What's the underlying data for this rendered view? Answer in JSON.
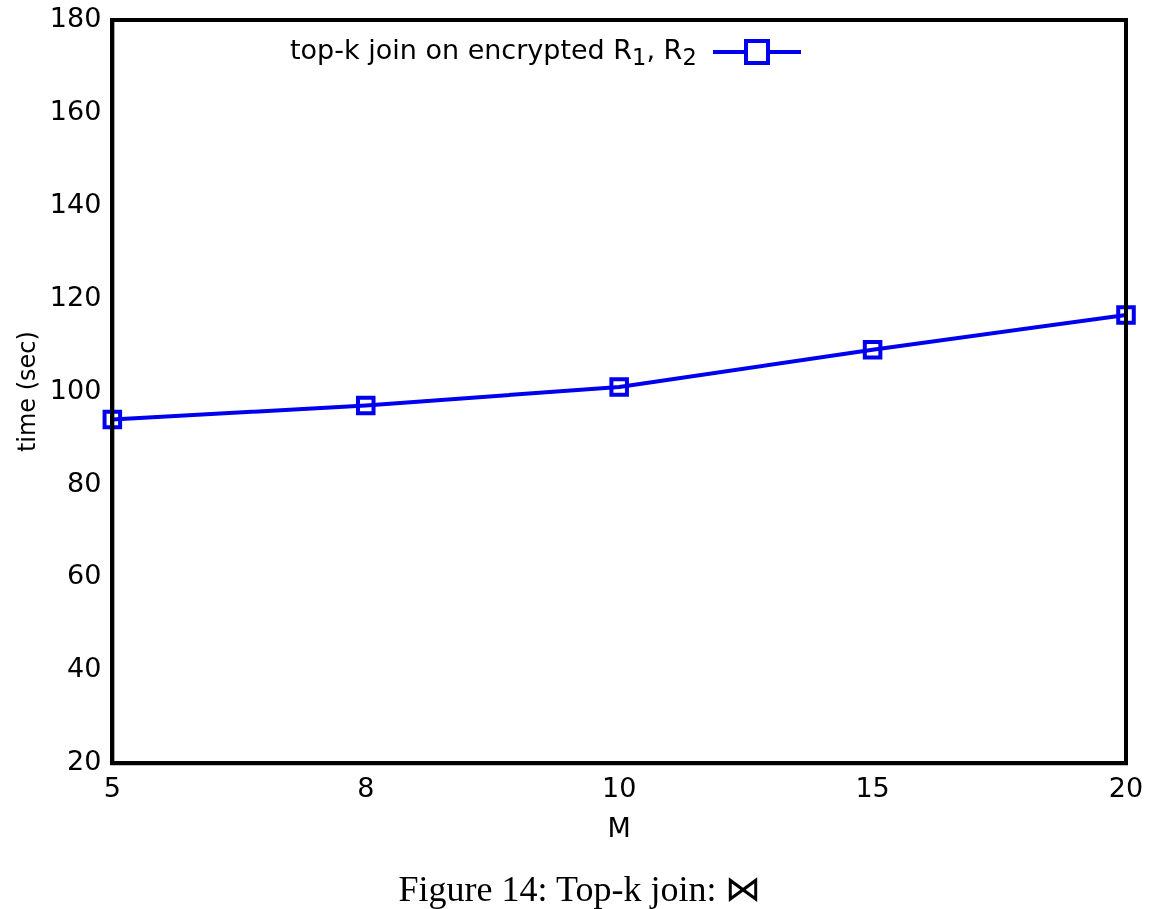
{
  "chart_data": {
    "type": "line",
    "xlabel": "M",
    "ylabel": "time (sec)",
    "categories": [
      "5",
      "8",
      "10",
      "15",
      "20"
    ],
    "series": [
      {
        "name": "top-k join on encrypted R$_{1}$, R$_{2}$",
        "color": "#0000ee",
        "values": [
          94,
          97,
          101,
          109,
          116.5
        ]
      }
    ],
    "ylim": [
      20,
      180
    ],
    "yticks": [
      20,
      40,
      60,
      80,
      100,
      120,
      140,
      160,
      180
    ],
    "grid": false,
    "legend": "top",
    "marker": "square",
    "line_style": "solid",
    "annotations": [
      "Figure 14: Top-k join: ⋈"
    ]
  }
}
